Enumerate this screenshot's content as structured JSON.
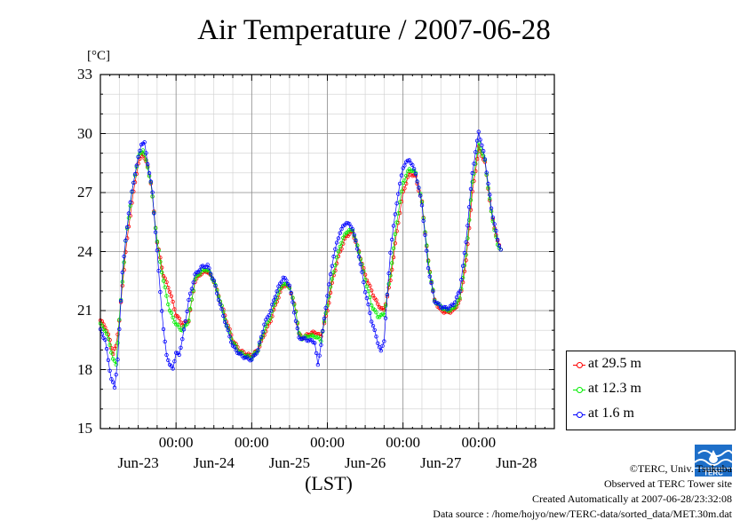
{
  "chart_data": {
    "type": "line",
    "title": "Air Temperature / 2007-06-28",
    "ylabel_unit": "[°C]",
    "xlabel": "(LST)",
    "ylim": [
      15,
      33
    ],
    "yticks": [
      15,
      18,
      21,
      24,
      27,
      30,
      33
    ],
    "xlim_hours": [
      0,
      144
    ],
    "xticks_hours": [
      24,
      48,
      72,
      96,
      120
    ],
    "x_time_labels": [
      "00:00",
      "00:00",
      "00:00",
      "00:00",
      "00:00"
    ],
    "x_day_labels": [
      "Jun-23",
      "Jun-24",
      "Jun-25",
      "Jun-26",
      "Jun-27",
      "Jun-28"
    ],
    "grid": true,
    "legend_position": "bottom-right outside",
    "series": [
      {
        "name": "at 29.5 m",
        "color": "#ff0000",
        "points": [
          [
            0,
            20.5
          ],
          [
            1.5,
            20.2
          ],
          [
            3,
            19.5
          ],
          [
            4,
            18.8
          ],
          [
            5,
            19.2
          ],
          [
            6,
            20.5
          ],
          [
            8,
            24.0
          ],
          [
            10,
            26.5
          ],
          [
            12,
            28.5
          ],
          [
            13.5,
            29.0
          ],
          [
            15,
            28.3
          ],
          [
            16,
            27.5
          ],
          [
            18,
            24.5
          ],
          [
            20,
            22.8
          ],
          [
            22,
            22.0
          ],
          [
            24,
            20.8
          ],
          [
            26,
            20.3
          ],
          [
            28,
            20.5
          ],
          [
            30,
            22.5
          ],
          [
            32,
            22.9
          ],
          [
            34,
            23.0
          ],
          [
            36,
            22.5
          ],
          [
            38,
            21.5
          ],
          [
            40,
            20.5
          ],
          [
            42,
            19.5
          ],
          [
            44,
            19.0
          ],
          [
            46,
            18.8
          ],
          [
            48,
            18.7
          ],
          [
            50,
            19.0
          ],
          [
            52,
            19.8
          ],
          [
            54,
            20.5
          ],
          [
            56,
            21.5
          ],
          [
            58,
            22.3
          ],
          [
            60,
            22.2
          ],
          [
            62,
            21.0
          ],
          [
            63,
            19.8
          ],
          [
            64,
            19.6
          ],
          [
            66,
            19.8
          ],
          [
            68,
            19.9
          ],
          [
            70,
            19.7
          ],
          [
            72,
            21.0
          ],
          [
            74,
            22.8
          ],
          [
            76,
            24.0
          ],
          [
            78,
            24.8
          ],
          [
            80,
            25.0
          ],
          [
            82,
            24.0
          ],
          [
            84,
            22.8
          ],
          [
            86,
            22.0
          ],
          [
            88,
            21.3
          ],
          [
            90,
            21.0
          ],
          [
            92,
            22.5
          ],
          [
            94,
            25.0
          ],
          [
            96,
            27.0
          ],
          [
            98,
            28.0
          ],
          [
            100,
            27.8
          ],
          [
            102,
            26.5
          ],
          [
            104,
            23.5
          ],
          [
            106,
            21.5
          ],
          [
            108,
            21.0
          ],
          [
            110,
            20.9
          ],
          [
            112,
            21.0
          ],
          [
            114,
            21.5
          ],
          [
            116,
            23.5
          ],
          [
            118,
            27.0
          ],
          [
            120,
            29.3
          ],
          [
            122,
            28.5
          ],
          [
            124,
            26.0
          ],
          [
            126,
            24.5
          ],
          [
            127,
            24.1
          ]
        ]
      },
      {
        "name": "at 12.3 m",
        "color": "#00ee00",
        "points": [
          [
            0,
            20.3
          ],
          [
            1.5,
            20.0
          ],
          [
            3,
            19.3
          ],
          [
            4,
            18.5
          ],
          [
            5,
            18.3
          ],
          [
            6,
            20.5
          ],
          [
            8,
            24.5
          ],
          [
            10,
            27.0
          ],
          [
            12,
            28.8
          ],
          [
            13.5,
            29.2
          ],
          [
            15,
            28.3
          ],
          [
            16,
            27.5
          ],
          [
            18,
            24.5
          ],
          [
            20,
            22.5
          ],
          [
            22,
            21.0
          ],
          [
            24,
            20.3
          ],
          [
            26,
            20.0
          ],
          [
            28,
            20.5
          ],
          [
            30,
            22.6
          ],
          [
            32,
            23.0
          ],
          [
            34,
            23.1
          ],
          [
            36,
            22.5
          ],
          [
            38,
            21.5
          ],
          [
            40,
            20.3
          ],
          [
            42,
            19.4
          ],
          [
            44,
            18.9
          ],
          [
            46,
            18.7
          ],
          [
            48,
            18.6
          ],
          [
            50,
            19.0
          ],
          [
            52,
            20.0
          ],
          [
            54,
            20.7
          ],
          [
            56,
            21.7
          ],
          [
            58,
            22.4
          ],
          [
            60,
            22.2
          ],
          [
            62,
            21.0
          ],
          [
            63,
            19.8
          ],
          [
            64,
            19.6
          ],
          [
            66,
            19.7
          ],
          [
            68,
            19.7
          ],
          [
            70,
            19.5
          ],
          [
            72,
            21.3
          ],
          [
            74,
            23.0
          ],
          [
            76,
            24.3
          ],
          [
            78,
            25.0
          ],
          [
            80,
            25.1
          ],
          [
            82,
            24.0
          ],
          [
            84,
            22.6
          ],
          [
            86,
            21.3
          ],
          [
            88,
            20.7
          ],
          [
            90,
            20.8
          ],
          [
            92,
            22.8
          ],
          [
            94,
            25.5
          ],
          [
            96,
            27.5
          ],
          [
            98,
            28.2
          ],
          [
            100,
            28.0
          ],
          [
            102,
            26.5
          ],
          [
            104,
            23.5
          ],
          [
            106,
            21.5
          ],
          [
            108,
            21.2
          ],
          [
            110,
            21.0
          ],
          [
            112,
            21.1
          ],
          [
            114,
            21.6
          ],
          [
            116,
            23.8
          ],
          [
            118,
            27.5
          ],
          [
            120,
            29.5
          ],
          [
            122,
            28.6
          ],
          [
            124,
            26.0
          ],
          [
            126,
            24.3
          ],
          [
            127,
            24.1
          ]
        ]
      },
      {
        "name": "at 1.6 m",
        "color": "#0000ff",
        "points": [
          [
            0,
            20.0
          ],
          [
            1.5,
            19.5
          ],
          [
            2.5,
            18.5
          ],
          [
            3.5,
            17.5
          ],
          [
            4.5,
            17.1
          ],
          [
            5.5,
            18.5
          ],
          [
            7,
            23.0
          ],
          [
            9,
            26.0
          ],
          [
            11,
            28.0
          ],
          [
            13,
            29.5
          ],
          [
            14,
            29.5
          ],
          [
            15,
            28.5
          ],
          [
            16.5,
            27.0
          ],
          [
            18,
            24.0
          ],
          [
            19,
            22.0
          ],
          [
            20,
            20.0
          ],
          [
            21,
            18.8
          ],
          [
            22,
            18.2
          ],
          [
            23,
            18.1
          ],
          [
            24,
            18.8
          ],
          [
            25,
            18.8
          ],
          [
            26,
            19.5
          ],
          [
            28,
            21.5
          ],
          [
            30,
            22.8
          ],
          [
            32,
            23.2
          ],
          [
            34,
            23.3
          ],
          [
            36,
            22.5
          ],
          [
            38,
            21.3
          ],
          [
            40,
            20.2
          ],
          [
            42,
            19.2
          ],
          [
            44,
            18.8
          ],
          [
            46,
            18.6
          ],
          [
            48,
            18.5
          ],
          [
            50,
            19.0
          ],
          [
            52,
            20.3
          ],
          [
            54,
            21.0
          ],
          [
            56,
            22.0
          ],
          [
            58,
            22.7
          ],
          [
            60,
            22.3
          ],
          [
            62,
            20.5
          ],
          [
            63,
            19.6
          ],
          [
            64,
            19.6
          ],
          [
            66,
            19.5
          ],
          [
            68,
            19.4
          ],
          [
            69,
            18.2
          ],
          [
            70,
            19.3
          ],
          [
            72,
            21.8
          ],
          [
            74,
            23.8
          ],
          [
            76,
            25.0
          ],
          [
            78,
            25.5
          ],
          [
            80,
            25.2
          ],
          [
            82,
            23.8
          ],
          [
            84,
            22.0
          ],
          [
            86,
            20.5
          ],
          [
            88,
            19.4
          ],
          [
            89,
            18.9
          ],
          [
            90,
            19.5
          ],
          [
            92,
            24.0
          ],
          [
            94,
            26.5
          ],
          [
            96,
            28.3
          ],
          [
            98,
            28.7
          ],
          [
            100,
            28.0
          ],
          [
            102,
            26.4
          ],
          [
            104,
            23.2
          ],
          [
            106,
            21.5
          ],
          [
            108,
            21.2
          ],
          [
            110,
            21.1
          ],
          [
            112,
            21.3
          ],
          [
            114,
            22.0
          ],
          [
            116,
            24.5
          ],
          [
            118,
            28.0
          ],
          [
            120,
            30.1
          ],
          [
            122,
            28.7
          ],
          [
            124,
            26.2
          ],
          [
            126,
            24.6
          ],
          [
            127,
            24.1
          ]
        ]
      }
    ]
  },
  "legend": {
    "items": [
      "at 29.5 m",
      "at 12.3 m",
      "at 1.6 m"
    ]
  },
  "credits": {
    "copyright": "©TERC, Univ. Tsukuba",
    "observed": "Observed at TERC Tower site",
    "created": "Created Automatically at 2007-06-28/23:32:08",
    "source": "Data source : /home/hojyo/new/TERC-data/sorted_data/MET.30m.dat"
  },
  "logo_text": "TERC"
}
